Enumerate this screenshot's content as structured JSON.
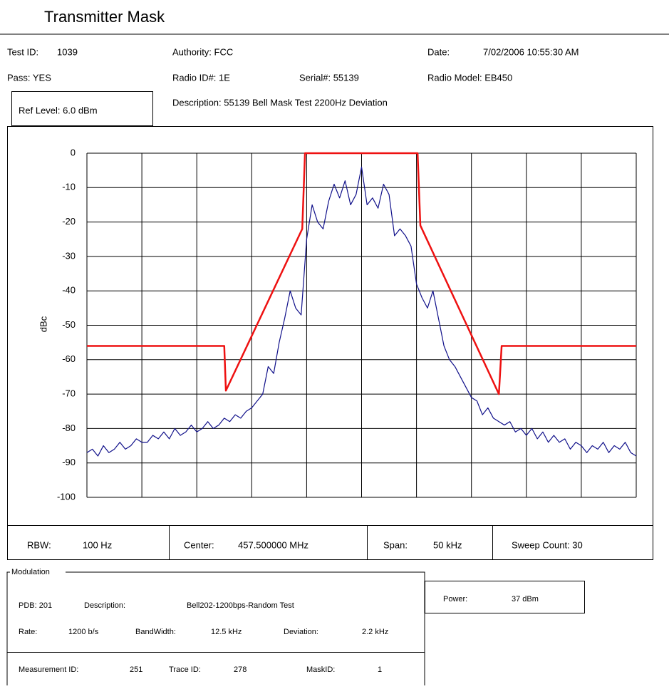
{
  "title": "Transmitter Mask",
  "header": {
    "test_id_label": "Test ID:",
    "test_id": "1039",
    "authority": "Authority: FCC",
    "date_label": "Date:",
    "date": "7/02/2006 10:55:30 AM",
    "pass": "Pass: YES",
    "radio_id": "Radio ID#: 1E",
    "serial": "Serial#: 55139",
    "radio_model": "Radio Model: EB450",
    "description": "Description: 55139 Bell Mask Test 2200Hz Deviation",
    "ref_level": "Ref Level: 6.0 dBm"
  },
  "chart_data": {
    "type": "line",
    "y_label": "dBc",
    "ylim": [
      -100,
      0
    ],
    "yticks": [
      0,
      -10,
      -20,
      -30,
      -40,
      -50,
      -60,
      -70,
      -80,
      -90,
      -100
    ],
    "xlim": [
      0,
      10
    ],
    "xticks": [
      0,
      1,
      2,
      3,
      4,
      5,
      6,
      7,
      8,
      9,
      10
    ],
    "grid": true,
    "series": [
      {
        "color": "#ee1111",
        "x": [
          0,
          2.5,
          2.53,
          3.92,
          3.97,
          6.02,
          6.07,
          7.5,
          7.55,
          10
        ],
        "values": [
          -56,
          -56,
          -69,
          -22,
          0,
          0,
          -21,
          -70,
          -56,
          -56
        ]
      },
      {
        "color": "#10108a",
        "x": [
          0,
          0.1,
          0.2,
          0.3,
          0.4,
          0.5,
          0.6,
          0.7,
          0.8,
          0.9,
          1,
          1.1,
          1.2,
          1.3,
          1.4,
          1.5,
          1.6,
          1.7,
          1.8,
          1.9,
          2,
          2.1,
          2.2,
          2.3,
          2.4,
          2.5,
          2.6,
          2.7,
          2.8,
          2.9,
          3,
          3.1,
          3.2,
          3.3,
          3.4,
          3.5,
          3.6,
          3.7,
          3.8,
          3.9,
          4,
          4.1,
          4.2,
          4.3,
          4.4,
          4.5,
          4.6,
          4.7,
          4.8,
          4.9,
          5,
          5.1,
          5.2,
          5.3,
          5.4,
          5.5,
          5.6,
          5.7,
          5.8,
          5.9,
          6,
          6.1,
          6.2,
          6.3,
          6.4,
          6.5,
          6.6,
          6.7,
          6.8,
          6.9,
          7,
          7.1,
          7.2,
          7.3,
          7.4,
          7.5,
          7.6,
          7.7,
          7.8,
          7.9,
          8,
          8.1,
          8.2,
          8.3,
          8.4,
          8.5,
          8.6,
          8.7,
          8.8,
          8.9,
          9,
          9.1,
          9.2,
          9.3,
          9.4,
          9.5,
          9.6,
          9.7,
          9.8,
          9.9,
          10
        ],
        "values": [
          -87,
          -86,
          -88,
          -85,
          -87,
          -86,
          -84,
          -86,
          -85,
          -83,
          -84,
          -84,
          -82,
          -83,
          -81,
          -83,
          -80,
          -82,
          -81,
          -79,
          -81,
          -80,
          -78,
          -80,
          -79,
          -77,
          -78,
          -76,
          -77,
          -75,
          -74,
          -72,
          -70,
          -62,
          -64,
          -55,
          -48,
          -40,
          -45,
          -47,
          -25,
          -15,
          -20,
          -22,
          -14,
          -9,
          -13,
          -8,
          -15,
          -12,
          -4,
          -15,
          -13,
          -16,
          -9,
          -12,
          -24,
          -22,
          -24,
          -27,
          -38,
          -42,
          -45,
          -40,
          -48,
          -56,
          -60,
          -62,
          -65,
          -68,
          -71,
          -72,
          -76,
          -74,
          -77,
          -78,
          -79,
          -78,
          -81,
          -80,
          -82,
          -80,
          -83,
          -81,
          -84,
          -82,
          -84,
          -83,
          -86,
          -84,
          -85,
          -87,
          -85,
          -86,
          -84,
          -87,
          -85,
          -86,
          -84,
          -87,
          -88
        ]
      }
    ]
  },
  "settings": {
    "rbw_label": "RBW:",
    "rbw": "100 Hz",
    "center_label": "Center:",
    "center": "457.500000 MHz",
    "span_label": "Span:",
    "span": "50 kHz",
    "sweep_count": "Sweep Count: 30"
  },
  "modulation": {
    "title": "Modulation",
    "pdb": "PDB: 201",
    "description_label": "Description:",
    "description": "Bell202-1200bps-Random Test",
    "rate_label": "Rate:",
    "rate": "1200 b/s",
    "bandwidth_label": "BandWidth:",
    "bandwidth": "12.5 kHz",
    "deviation_label": "Deviation:",
    "deviation": "2.2 kHz",
    "power_label": "Power:",
    "power": "37 dBm",
    "measurement_id_label": "Measurement ID:",
    "measurement_id": "251",
    "trace_id_label": "Trace ID:",
    "trace_id": "278",
    "mask_id_label": "MaskID:",
    "mask_id": "1"
  }
}
